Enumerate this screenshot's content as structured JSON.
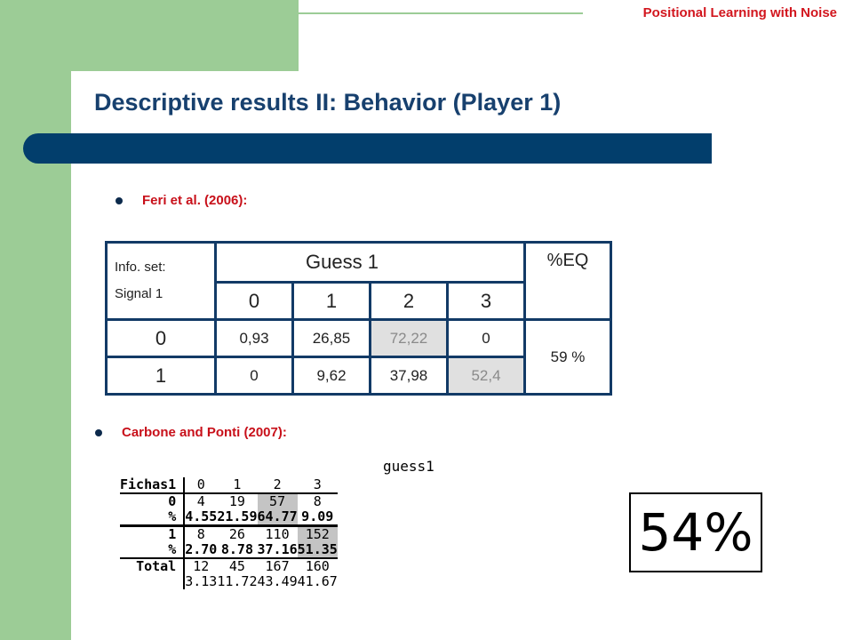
{
  "header": {
    "running_title": "Positional Learning with Noise"
  },
  "slide": {
    "title": "Descriptive results II: Behavior (Player 1)"
  },
  "bullets": [
    {
      "text": "Feri et al. (2006):"
    },
    {
      "text": "Carbone and Ponti (2007):"
    }
  ],
  "table1": {
    "info_line1": "Info. set:",
    "info_line2": "Signal 1",
    "guess_header": "Guess 1",
    "eq_header": "%EQ",
    "guess_values": [
      "0",
      "1",
      "2",
      "3"
    ],
    "rows": [
      {
        "label": "0",
        "values": [
          "0,93",
          "26,85",
          "72,22",
          "0"
        ]
      },
      {
        "label": "1",
        "values": [
          "0",
          "9,62",
          "37,98",
          "52,4"
        ]
      }
    ],
    "eq_value": "59 %"
  },
  "table2": {
    "guess_label": "guess1",
    "row_header": "Fichas1",
    "columns": [
      "0",
      "1",
      "2",
      "3"
    ],
    "rows": [
      {
        "label": "0",
        "values": [
          "4",
          "19",
          "57",
          "8"
        ]
      },
      {
        "label": "%",
        "values": [
          "4.55",
          "21.59",
          "64.77",
          "9.09"
        ]
      },
      {
        "label": "1",
        "values": [
          "8",
          "26",
          "110",
          "152"
        ]
      },
      {
        "label": "%",
        "values": [
          "2.70",
          "8.78",
          "37.16",
          "51.35"
        ]
      },
      {
        "label": "Total",
        "values": [
          "12",
          "45",
          "167",
          "160"
        ]
      },
      {
        "label": "",
        "values": [
          "3.13",
          "11.72",
          "43.49",
          "41.67"
        ]
      }
    ],
    "eq_value": "54%"
  },
  "colors": {
    "band_green": "#9ccc96",
    "title_blue": "#17406e",
    "bar_navy": "#023e6c",
    "accent_red": "#c8101a"
  }
}
